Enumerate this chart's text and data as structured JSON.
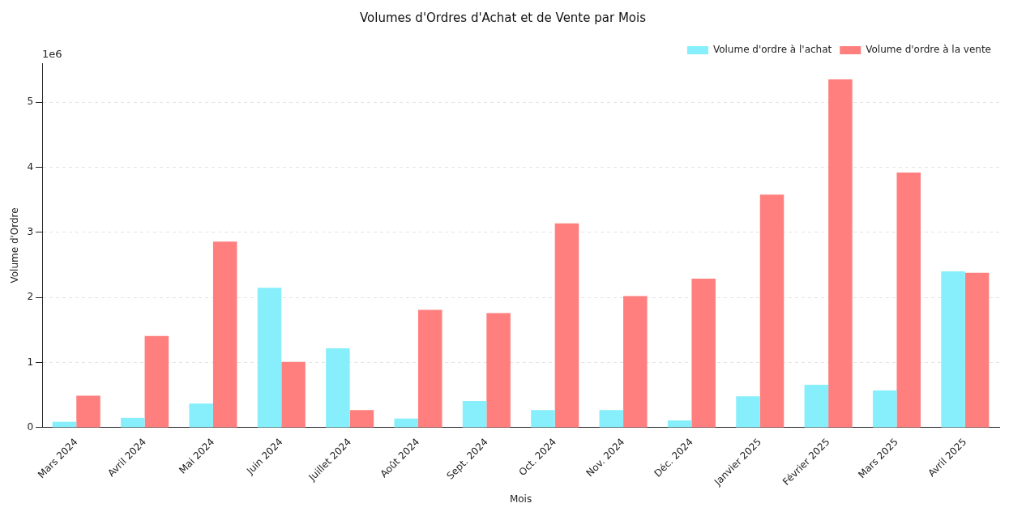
{
  "chart_data": {
    "type": "bar",
    "title": "Volumes d'Ordres d'Achat et de Vente par Mois",
    "xlabel": "Mois",
    "ylabel": "Volume d'Ordre",
    "categories": [
      "Mars 2024",
      "Avril 2024",
      "Mai 2024",
      "Juin 2024",
      "Juillet 2024",
      "Août 2024",
      "Sept. 2024",
      "Oct. 2024",
      "Nov. 2024",
      "Déc. 2024",
      "Janvier 2025",
      "Février 2025",
      "Mars 2025",
      "Avril 2025"
    ],
    "series": [
      {
        "name": "Volume d'ordre à l'achat",
        "color": "#86effb",
        "values": [
          0.09,
          0.15,
          0.37,
          2.15,
          1.22,
          0.14,
          0.41,
          0.27,
          0.27,
          0.11,
          0.48,
          0.66,
          0.57,
          2.4
        ]
      },
      {
        "name": "Volume d'ordre à la vente",
        "color": "#ff7f7f",
        "values": [
          0.49,
          1.41,
          2.86,
          1.01,
          0.27,
          1.81,
          1.76,
          3.14,
          2.02,
          2.29,
          3.58,
          5.35,
          3.92,
          2.38
        ]
      }
    ],
    "ylim": [
      0,
      5.6
    ],
    "yticks": [
      0,
      1,
      2,
      3,
      4,
      5
    ],
    "grid": "y",
    "legend": "top right",
    "annotations": [
      "1e6"
    ]
  }
}
